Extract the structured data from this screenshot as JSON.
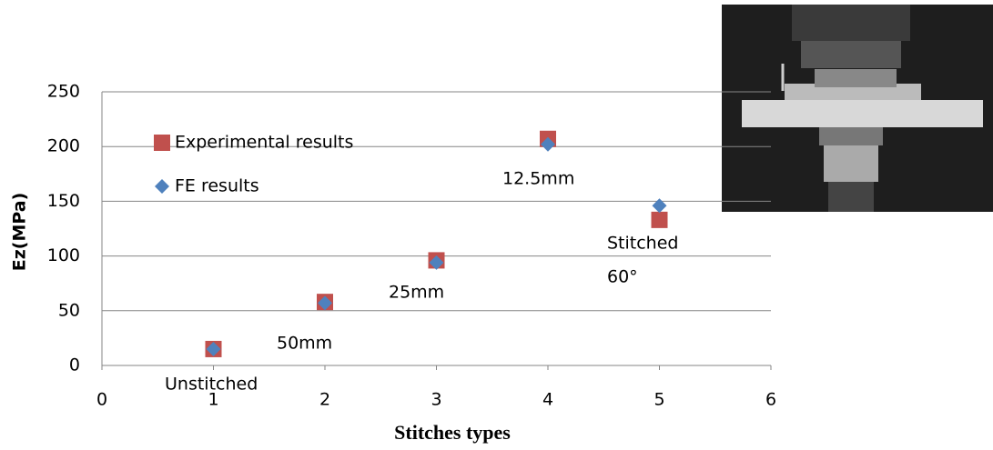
{
  "chart_data": {
    "type": "scatter",
    "x_label": "Stitches types",
    "y_label": "Ez(MPa)",
    "xlim": [
      0,
      6
    ],
    "xticks": [
      0,
      1,
      2,
      3,
      4,
      5,
      6
    ],
    "ylim": [
      0,
      250
    ],
    "yticks": [
      0,
      50,
      100,
      150,
      200,
      250
    ],
    "grid": true,
    "series": [
      {
        "name": "Experimental results",
        "color": "#c0504d",
        "marker": "square",
        "x": [
          1,
          2,
          3,
          4,
          5
        ],
        "values": [
          15,
          58,
          96,
          207,
          133
        ]
      },
      {
        "name": "FE results",
        "color": "#4f81bd",
        "marker": "diamond",
        "x": [
          1,
          2,
          3,
          4,
          5
        ],
        "values": [
          15,
          57,
          94,
          202,
          146
        ]
      }
    ],
    "annotations": [
      "Unstitched",
      "50mm",
      "25mm",
      "12.5mm",
      "Stitched",
      "60°"
    ]
  }
}
